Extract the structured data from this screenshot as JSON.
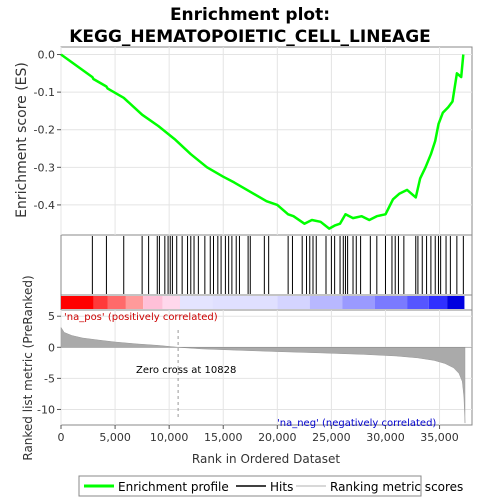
{
  "chart_data": {
    "type": "line",
    "title_line1": "Enrichment plot:",
    "title_line2": "KEGG_HEMATOPOIETIC_CELL_LINEAGE",
    "ylabel_top": "Enrichment score (ES)",
    "ylabel_bottom": "Ranked list metric (PreRanked)",
    "xlabel": "Rank in Ordered Dataset",
    "xlim": [
      0,
      38000
    ],
    "xticks": [
      0,
      5000,
      10000,
      15000,
      20000,
      25000,
      30000,
      35000
    ],
    "xtick_labels": [
      "0",
      "5,000",
      "10,000",
      "15,000",
      "20,000",
      "25,000",
      "30,000",
      "35,000"
    ],
    "es_ylim": [
      -0.48,
      0.02
    ],
    "es_yticks": [
      0.0,
      -0.1,
      -0.2,
      -0.3,
      -0.4
    ],
    "es_ytick_labels": [
      "0.0",
      "-0.1",
      "-0.2",
      "-0.3",
      "-0.4"
    ],
    "metric_ylim": [
      -12.5,
      6
    ],
    "metric_yticks": [
      5,
      0,
      -5,
      -10
    ],
    "metric_ytick_labels": [
      "5",
      "0",
      "-5",
      "-10"
    ],
    "zero_cross": 10828,
    "zero_cross_label": "Zero cross at 10828",
    "pos_label": "'na_pos' (positively correlated)",
    "neg_label": "'na_neg' (negatively correlated)",
    "legend": [
      "Enrichment profile",
      "Hits",
      "Ranking metric scores"
    ],
    "colors": {
      "es_line": "#00ff00",
      "hits": "#000000",
      "metric": "#aaaaaa",
      "pos_text": "#cc0000",
      "neg_text": "#0000cc"
    },
    "es_points": [
      [
        0,
        0.0
      ],
      [
        2900,
        -0.06
      ],
      [
        3000,
        -0.065
      ],
      [
        4200,
        -0.085
      ],
      [
        4300,
        -0.09
      ],
      [
        5800,
        -0.115
      ],
      [
        7500,
        -0.16
      ],
      [
        9000,
        -0.19
      ],
      [
        10500,
        -0.225
      ],
      [
        12000,
        -0.265
      ],
      [
        13500,
        -0.3
      ],
      [
        15000,
        -0.325
      ],
      [
        16000,
        -0.34
      ],
      [
        17500,
        -0.365
      ],
      [
        19000,
        -0.39
      ],
      [
        20000,
        -0.4
      ],
      [
        21000,
        -0.425
      ],
      [
        21500,
        -0.43
      ],
      [
        22500,
        -0.45
      ],
      [
        23200,
        -0.44
      ],
      [
        24000,
        -0.445
      ],
      [
        24800,
        -0.463
      ],
      [
        25300,
        -0.455
      ],
      [
        25800,
        -0.45
      ],
      [
        26300,
        -0.425
      ],
      [
        27000,
        -0.435
      ],
      [
        27800,
        -0.43
      ],
      [
        28500,
        -0.44
      ],
      [
        29200,
        -0.43
      ],
      [
        30000,
        -0.425
      ],
      [
        30700,
        -0.385
      ],
      [
        31300,
        -0.37
      ],
      [
        32000,
        -0.36
      ],
      [
        32800,
        -0.38
      ],
      [
        33200,
        -0.33
      ],
      [
        33700,
        -0.3
      ],
      [
        34200,
        -0.265
      ],
      [
        34600,
        -0.23
      ],
      [
        34900,
        -0.185
      ],
      [
        35300,
        -0.155
      ],
      [
        35800,
        -0.14
      ],
      [
        36200,
        -0.125
      ],
      [
        36600,
        -0.05
      ],
      [
        37000,
        -0.06
      ],
      [
        37200,
        0.0
      ]
    ],
    "hits": [
      2900,
      4200,
      5800,
      7500,
      8100,
      8900,
      9100,
      9600,
      9900,
      10100,
      10300,
      10700,
      11200,
      11700,
      12000,
      12300,
      12700,
      13300,
      13800,
      14100,
      14500,
      14800,
      15200,
      15500,
      15800,
      16200,
      16500,
      17300,
      17500,
      18800,
      19200,
      21000,
      21400,
      22300,
      22700,
      23000,
      23300,
      23600,
      24500,
      25000,
      25300,
      25800,
      26100,
      26300,
      26500,
      27000,
      27300,
      27700,
      28600,
      29200,
      30000,
      30600,
      30900,
      31200,
      31700,
      32800,
      33000,
      33400,
      33800,
      34200,
      34600,
      34900,
      35100,
      35600,
      36000,
      36600,
      37200
    ],
    "metric_curve": [
      [
        0,
        3.2
      ],
      [
        300,
        2.4
      ],
      [
        1000,
        1.9
      ],
      [
        2000,
        1.5
      ],
      [
        3500,
        1.15
      ],
      [
        5000,
        0.85
      ],
      [
        7000,
        0.55
      ],
      [
        9000,
        0.3
      ],
      [
        10828,
        0.0
      ],
      [
        13000,
        -0.25
      ],
      [
        16000,
        -0.45
      ],
      [
        20000,
        -0.7
      ],
      [
        24000,
        -0.9
      ],
      [
        28000,
        -1.15
      ],
      [
        31000,
        -1.4
      ],
      [
        33000,
        -1.7
      ],
      [
        34500,
        -2.1
      ],
      [
        35500,
        -2.6
      ],
      [
        36300,
        -3.3
      ],
      [
        36800,
        -4.2
      ],
      [
        37100,
        -5.5
      ],
      [
        37250,
        -8.0
      ],
      [
        37350,
        -12.2
      ]
    ],
    "bar_segments": [
      {
        "to": 3000,
        "color": "#ff0000"
      },
      {
        "to": 4300,
        "color": "#ff3a3a"
      },
      {
        "to": 6000,
        "color": "#ff6a6a"
      },
      {
        "to": 7600,
        "color": "#ff9a9a"
      },
      {
        "to": 9400,
        "color": "#ffc0d8"
      },
      {
        "to": 11000,
        "color": "#ffd8ec"
      },
      {
        "to": 14000,
        "color": "#e4e4ff"
      },
      {
        "to": 20000,
        "color": "#e0e0ff"
      },
      {
        "to": 23000,
        "color": "#d4d4ff"
      },
      {
        "to": 26000,
        "color": "#b8b8ff"
      },
      {
        "to": 29000,
        "color": "#9a9aff"
      },
      {
        "to": 32000,
        "color": "#7a7aff"
      },
      {
        "to": 34000,
        "color": "#5656ff"
      },
      {
        "to": 35700,
        "color": "#3030ff"
      },
      {
        "to": 37300,
        "color": "#0000e0"
      }
    ]
  }
}
